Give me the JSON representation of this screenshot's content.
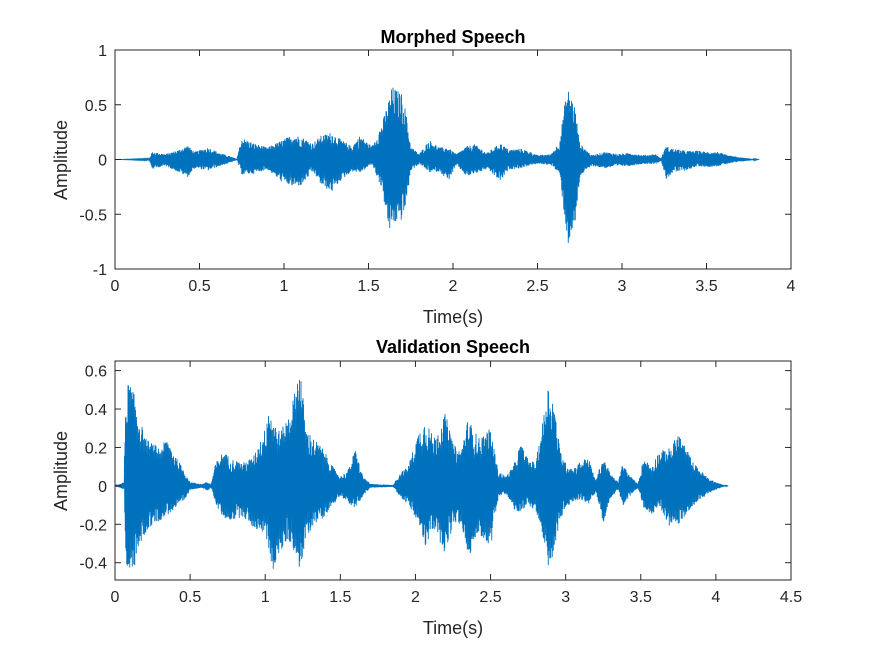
{
  "colors": {
    "signal": "#0072BD",
    "axis": "#262626",
    "background": "#ffffff"
  },
  "chart_data": [
    {
      "type": "line",
      "title": "Morphed Speech",
      "xlabel": "Time(s)",
      "ylabel": "Amplitude",
      "xlim": [
        0,
        4
      ],
      "ylim": [
        -1,
        1
      ],
      "xticks": [
        0,
        0.5,
        1,
        1.5,
        2,
        2.5,
        3,
        3.5,
        4
      ],
      "xtick_labels": [
        "0",
        "0.5",
        "1",
        "1.5",
        "2",
        "2.5",
        "3",
        "3.5",
        "4"
      ],
      "yticks": [
        -1,
        -0.5,
        0,
        0.5,
        1
      ],
      "ytick_labels": [
        "-1",
        "-0.5",
        "0",
        "0.5",
        "1"
      ],
      "grid": false,
      "series": [
        {
          "envelope": [
            [
              0.0,
              0.0,
              0.0
            ],
            [
              0.2,
              0.005,
              -0.005
            ],
            [
              0.22,
              0.07,
              -0.09
            ],
            [
              0.26,
              0.06,
              -0.07
            ],
            [
              0.3,
              0.05,
              -0.06
            ],
            [
              0.38,
              0.09,
              -0.12
            ],
            [
              0.43,
              0.13,
              -0.16
            ],
            [
              0.47,
              0.07,
              -0.08
            ],
            [
              0.55,
              0.11,
              -0.1
            ],
            [
              0.62,
              0.06,
              -0.06
            ],
            [
              0.68,
              0.03,
              -0.03
            ],
            [
              0.72,
              0.005,
              -0.005
            ],
            [
              0.75,
              0.2,
              -0.14
            ],
            [
              0.82,
              0.15,
              -0.13
            ],
            [
              0.9,
              0.11,
              -0.09
            ],
            [
              0.98,
              0.17,
              -0.2
            ],
            [
              1.05,
              0.23,
              -0.25
            ],
            [
              1.1,
              0.21,
              -0.24
            ],
            [
              1.17,
              0.15,
              -0.11
            ],
            [
              1.22,
              0.22,
              -0.24
            ],
            [
              1.28,
              0.25,
              -0.3
            ],
            [
              1.33,
              0.19,
              -0.2
            ],
            [
              1.4,
              0.12,
              -0.11
            ],
            [
              1.45,
              0.22,
              -0.12
            ],
            [
              1.52,
              0.12,
              -0.04
            ],
            [
              1.58,
              0.33,
              -0.28
            ],
            [
              1.62,
              0.55,
              -0.67
            ],
            [
              1.64,
              0.67,
              -0.6
            ],
            [
              1.7,
              0.6,
              -0.55
            ],
            [
              1.72,
              0.45,
              -0.42
            ],
            [
              1.75,
              0.12,
              -0.1
            ],
            [
              1.8,
              0.05,
              -0.04
            ],
            [
              1.86,
              0.18,
              -0.12
            ],
            [
              1.92,
              0.11,
              -0.11
            ],
            [
              1.97,
              0.11,
              -0.2
            ],
            [
              2.02,
              0.05,
              -0.05
            ],
            [
              2.08,
              0.12,
              -0.16
            ],
            [
              2.13,
              0.14,
              -0.13
            ],
            [
              2.2,
              0.06,
              -0.09
            ],
            [
              2.28,
              0.15,
              -0.2
            ],
            [
              2.33,
              0.09,
              -0.09
            ],
            [
              2.4,
              0.1,
              -0.08
            ],
            [
              2.46,
              0.07,
              -0.05
            ],
            [
              2.5,
              0.04,
              -0.04
            ],
            [
              2.58,
              0.05,
              -0.05
            ],
            [
              2.63,
              0.16,
              -0.14
            ],
            [
              2.66,
              0.5,
              -0.55
            ],
            [
              2.68,
              0.65,
              -0.78
            ],
            [
              2.72,
              0.5,
              -0.62
            ],
            [
              2.75,
              0.15,
              -0.15
            ],
            [
              2.82,
              0.04,
              -0.06
            ],
            [
              2.9,
              0.07,
              -0.08
            ],
            [
              2.98,
              0.05,
              -0.06
            ],
            [
              3.05,
              0.06,
              -0.06
            ],
            [
              3.12,
              0.04,
              -0.04
            ],
            [
              3.2,
              0.05,
              -0.04
            ],
            [
              3.23,
              0.01,
              -0.01
            ],
            [
              3.26,
              0.12,
              -0.18
            ],
            [
              3.3,
              0.1,
              -0.12
            ],
            [
              3.38,
              0.08,
              -0.1
            ],
            [
              3.45,
              0.08,
              -0.06
            ],
            [
              3.5,
              0.07,
              -0.07
            ],
            [
              3.57,
              0.07,
              -0.06
            ],
            [
              3.62,
              0.04,
              -0.04
            ],
            [
              3.7,
              0.02,
              -0.02
            ],
            [
              3.78,
              0.005,
              -0.005
            ],
            [
              3.81,
              0.0,
              0.0
            ]
          ]
        }
      ]
    },
    {
      "type": "line",
      "title": "Validation Speech",
      "xlabel": "Time(s)",
      "ylabel": "Amplitude",
      "xlim": [
        0,
        4.5
      ],
      "ylim": [
        -0.49,
        0.65
      ],
      "xticks": [
        0,
        0.5,
        1,
        1.5,
        2,
        2.5,
        3,
        3.5,
        4,
        4.5
      ],
      "xtick_labels": [
        "0",
        "0.5",
        "1",
        "1.5",
        "2",
        "2.5",
        "3",
        "3.5",
        "4",
        "4.5"
      ],
      "yticks": [
        -0.4,
        -0.2,
        0,
        0.2,
        0.4,
        0.6
      ],
      "ytick_labels": [
        "-0.4",
        "-0.2",
        "0",
        "0.2",
        "0.4",
        "0.6"
      ],
      "grid": false,
      "series": [
        {
          "envelope": [
            [
              0.0,
              0.0,
              0.0
            ],
            [
              0.06,
              0.02,
              -0.02
            ],
            [
              0.07,
              0.45,
              -0.4
            ],
            [
              0.09,
              0.55,
              -0.48
            ],
            [
              0.12,
              0.5,
              -0.45
            ],
            [
              0.16,
              0.37,
              -0.32
            ],
            [
              0.2,
              0.25,
              -0.25
            ],
            [
              0.25,
              0.22,
              -0.2
            ],
            [
              0.3,
              0.2,
              -0.18
            ],
            [
              0.35,
              0.25,
              -0.15
            ],
            [
              0.4,
              0.16,
              -0.12
            ],
            [
              0.46,
              0.08,
              -0.08
            ],
            [
              0.5,
              0.02,
              -0.02
            ],
            [
              0.58,
              0.01,
              -0.01
            ],
            [
              0.61,
              0.02,
              -0.03
            ],
            [
              0.64,
              0.01,
              -0.01
            ],
            [
              0.67,
              0.12,
              -0.1
            ],
            [
              0.72,
              0.18,
              -0.17
            ],
            [
              0.78,
              0.14,
              -0.18
            ],
            [
              0.85,
              0.12,
              -0.16
            ],
            [
              0.92,
              0.15,
              -0.22
            ],
            [
              1.0,
              0.3,
              -0.25
            ],
            [
              1.02,
              0.43,
              -0.33
            ],
            [
              1.05,
              0.35,
              -0.44
            ],
            [
              1.1,
              0.28,
              -0.35
            ],
            [
              1.15,
              0.36,
              -0.28
            ],
            [
              1.2,
              0.5,
              -0.35
            ],
            [
              1.23,
              0.65,
              -0.45
            ],
            [
              1.27,
              0.3,
              -0.28
            ],
            [
              1.32,
              0.25,
              -0.2
            ],
            [
              1.38,
              0.2,
              -0.17
            ],
            [
              1.45,
              0.1,
              -0.1
            ],
            [
              1.5,
              0.05,
              -0.05
            ],
            [
              1.55,
              0.08,
              -0.09
            ],
            [
              1.6,
              0.19,
              -0.12
            ],
            [
              1.65,
              0.05,
              -0.05
            ],
            [
              1.7,
              0.01,
              -0.01
            ],
            [
              1.85,
              0.005,
              -0.005
            ],
            [
              1.9,
              0.07,
              -0.06
            ],
            [
              1.95,
              0.1,
              -0.1
            ],
            [
              2.02,
              0.28,
              -0.2
            ],
            [
              2.07,
              0.35,
              -0.33
            ],
            [
              2.12,
              0.25,
              -0.22
            ],
            [
              2.2,
              0.38,
              -0.36
            ],
            [
              2.25,
              0.22,
              -0.2
            ],
            [
              2.3,
              0.18,
              -0.2
            ],
            [
              2.35,
              0.35,
              -0.38
            ],
            [
              2.42,
              0.25,
              -0.25
            ],
            [
              2.5,
              0.3,
              -0.32
            ],
            [
              2.55,
              0.08,
              -0.06
            ],
            [
              2.6,
              0.05,
              -0.04
            ],
            [
              2.65,
              0.1,
              -0.12
            ],
            [
              2.7,
              0.22,
              -0.15
            ],
            [
              2.75,
              0.14,
              -0.1
            ],
            [
              2.8,
              0.12,
              -0.13
            ],
            [
              2.85,
              0.35,
              -0.3
            ],
            [
              2.88,
              0.53,
              -0.45
            ],
            [
              2.92,
              0.45,
              -0.35
            ],
            [
              2.96,
              0.2,
              -0.18
            ],
            [
              3.0,
              0.12,
              -0.12
            ],
            [
              3.05,
              0.09,
              -0.08
            ],
            [
              3.1,
              0.13,
              -0.07
            ],
            [
              3.15,
              0.15,
              -0.1
            ],
            [
              3.2,
              0.03,
              -0.03
            ],
            [
              3.25,
              0.15,
              -0.2
            ],
            [
              3.3,
              0.06,
              -0.06
            ],
            [
              3.35,
              0.02,
              -0.02
            ],
            [
              3.38,
              0.12,
              -0.11
            ],
            [
              3.42,
              0.06,
              -0.06
            ],
            [
              3.48,
              0.01,
              -0.01
            ],
            [
              3.52,
              0.15,
              -0.12
            ],
            [
              3.57,
              0.1,
              -0.15
            ],
            [
              3.62,
              0.18,
              -0.1
            ],
            [
              3.7,
              0.2,
              -0.23
            ],
            [
              3.75,
              0.28,
              -0.2
            ],
            [
              3.8,
              0.2,
              -0.15
            ],
            [
              3.85,
              0.12,
              -0.1
            ],
            [
              3.9,
              0.08,
              -0.07
            ],
            [
              3.95,
              0.04,
              -0.04
            ],
            [
              4.0,
              0.02,
              -0.02
            ],
            [
              4.05,
              0.005,
              -0.005
            ],
            [
              4.08,
              0.0,
              0.0
            ]
          ]
        }
      ]
    }
  ]
}
